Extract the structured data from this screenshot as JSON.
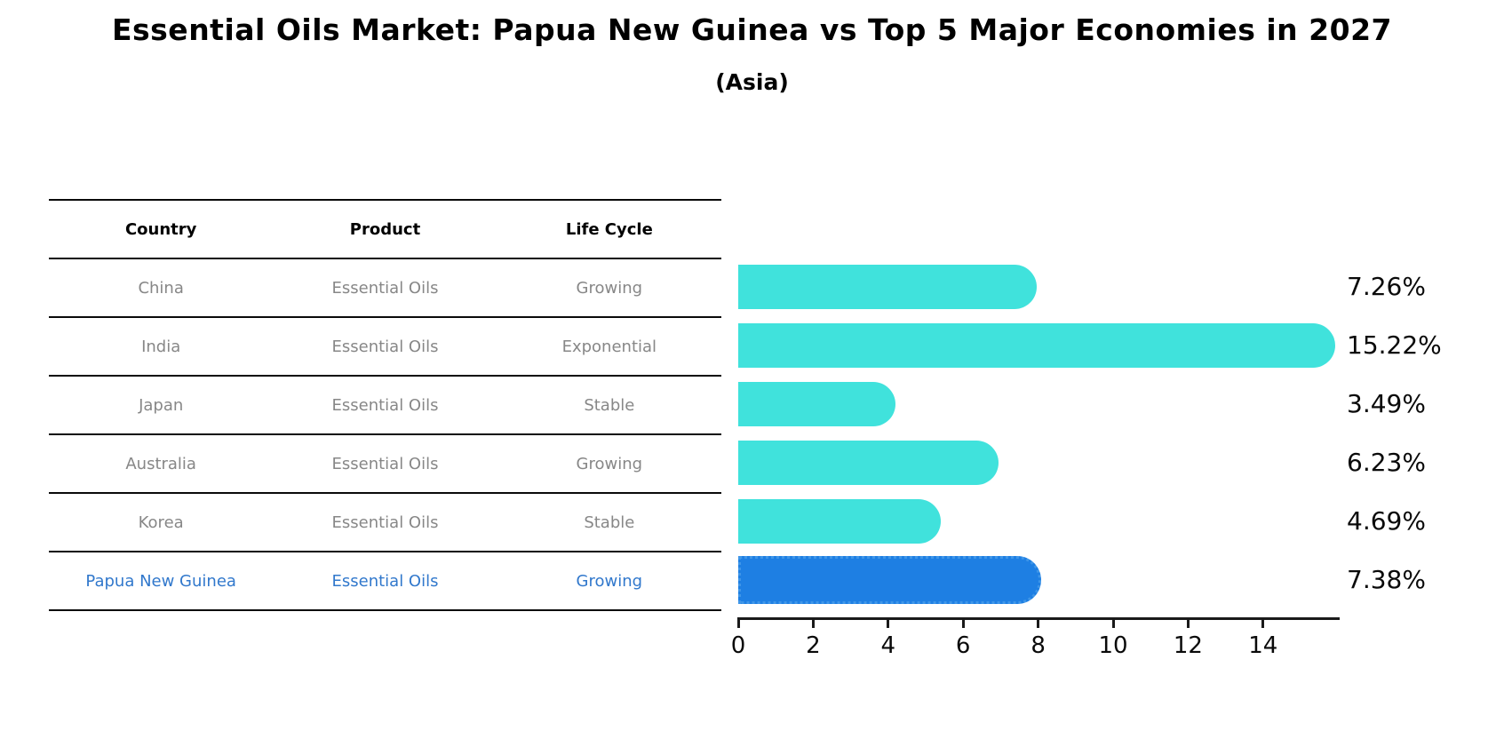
{
  "header": {
    "title": "Essential Oils Market: Papua New Guinea vs Top 5 Major Economies in 2027",
    "subtitle": "(Asia)"
  },
  "table": {
    "columns": [
      "Country",
      "Product",
      "Life Cycle"
    ],
    "rows": [
      {
        "country": "China",
        "product": "Essential Oils",
        "life_cycle": "Growing",
        "highlight": false
      },
      {
        "country": "India",
        "product": "Essential Oils",
        "life_cycle": "Exponential",
        "highlight": false
      },
      {
        "country": "Japan",
        "product": "Essential Oils",
        "life_cycle": "Stable",
        "highlight": false
      },
      {
        "country": "Australia",
        "product": "Essential Oils",
        "life_cycle": "Growing",
        "highlight": false
      },
      {
        "country": "Korea",
        "product": "Essential Oils",
        "life_cycle": "Stable",
        "highlight": false
      },
      {
        "country": "Papua New Guinea",
        "product": "Essential Oils",
        "life_cycle": "Growing",
        "highlight": true
      }
    ]
  },
  "chart_data": {
    "type": "bar",
    "orientation": "horizontal",
    "title": "Essential Oils Market: Papua New Guinea vs Top 5 Major Economies in 2027",
    "subtitle": "(Asia)",
    "categories": [
      "China",
      "India",
      "Japan",
      "Australia",
      "Korea",
      "Papua New Guinea"
    ],
    "values": [
      7.26,
      15.22,
      3.49,
      6.23,
      4.69,
      7.38
    ],
    "value_labels": [
      "7.26%",
      "15.22%",
      "3.49%",
      "6.23%",
      "4.69%",
      "7.38%"
    ],
    "highlight_index": 5,
    "x_ticks": [
      0,
      2,
      4,
      6,
      8,
      10,
      12,
      14
    ],
    "xlim": [
      0,
      16
    ],
    "grid": false,
    "legend": false,
    "xlabel": "",
    "ylabel": ""
  },
  "colors": {
    "bar_cyan": "#40E2DC",
    "bar_blue": "#1E7FE3",
    "bar_blue_border": "#3F96E8",
    "highlight_text": "#3178CC",
    "row_text": "#878787",
    "axis": "#1a1a1a"
  }
}
